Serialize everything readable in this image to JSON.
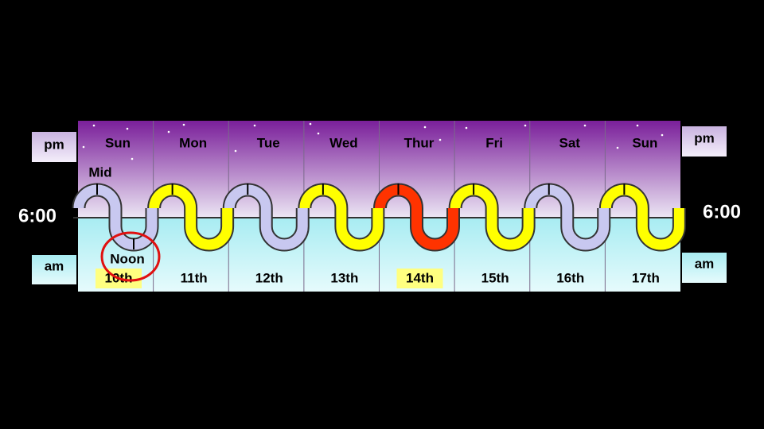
{
  "left": {
    "pm": "pm",
    "am": "am",
    "time": "6:00"
  },
  "right": {
    "pm": "pm",
    "am": "am",
    "time": "6:00"
  },
  "midnight_label": "Mid",
  "noon_label": "Noon",
  "days": [
    {
      "name": "Sun",
      "date": "10th",
      "color": "#c8c8f0",
      "highlight": true
    },
    {
      "name": "Mon",
      "date": "11th",
      "color": "#ffff00",
      "highlight": false
    },
    {
      "name": "Tue",
      "date": "12th",
      "color": "#c8c8f0",
      "highlight": false
    },
    {
      "name": "Wed",
      "date": "13th",
      "color": "#ffff00",
      "highlight": false
    },
    {
      "name": "Thur",
      "date": "14th",
      "color": "#ff3300",
      "highlight": true
    },
    {
      "name": "Fri",
      "date": "15th",
      "color": "#ffff00",
      "highlight": false
    },
    {
      "name": "Sat",
      "date": "16th",
      "color": "#c8c8f0",
      "highlight": false
    },
    {
      "name": "Sun",
      "date": "17th",
      "color": "#ffff00",
      "highlight": false
    }
  ]
}
